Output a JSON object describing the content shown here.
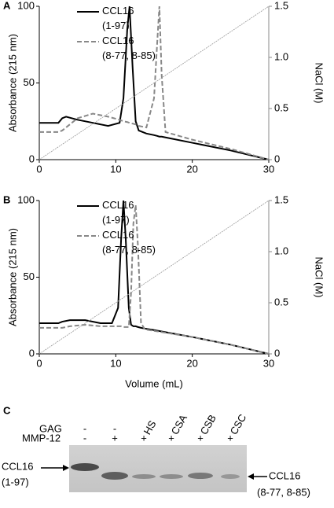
{
  "chart_data": [
    {
      "type": "line",
      "panel": "A",
      "ylabel": "Absorbance (215 nm)",
      "y2label": "NaCl (M)",
      "xlim": [
        0,
        30
      ],
      "xticks": [
        0,
        10,
        20,
        30
      ],
      "ylim": [
        0,
        100
      ],
      "yticks": [
        0,
        50,
        100
      ],
      "y2lim": [
        0,
        1.5
      ],
      "y2ticks": [
        0,
        0.5,
        {
          "value": 1,
          "label": "1.0"
        },
        1.5
      ],
      "series": [
        {
          "name": "CCL16 (1-97)",
          "color": "#000000",
          "style": "solid",
          "x": [
            0,
            2.5,
            3,
            3.5,
            5,
            7,
            9,
            10.5,
            11,
            11.5,
            11.8,
            12.2,
            12.6,
            13,
            14,
            15,
            15.4,
            15.7,
            16,
            16.5,
            20,
            25,
            30
          ],
          "values": [
            24,
            24,
            27,
            28,
            26,
            24,
            22,
            24,
            40,
            85,
            100,
            60,
            25,
            19,
            17,
            16,
            15.5,
            15,
            15,
            14.5,
            11,
            6,
            0
          ]
        },
        {
          "name": "CCL16 (8-77, 8-85)",
          "color": "#888888",
          "style": "dashed",
          "x": [
            0,
            2.5,
            3,
            3.5,
            5,
            7,
            9,
            10.5,
            11,
            11.5,
            11.8,
            12.2,
            12.6,
            13,
            14,
            15,
            15.4,
            15.7,
            16,
            16.5,
            20,
            25,
            30
          ],
          "values": [
            18,
            18,
            19,
            21,
            27,
            30,
            28,
            26,
            25,
            24.5,
            24,
            23.5,
            23,
            22,
            21,
            40,
            75,
            100,
            55,
            18,
            13,
            7,
            0
          ]
        },
        {
          "color": "#999999",
          "style": "dotted",
          "axis": "y2",
          "x": [
            0,
            30
          ],
          "values": [
            0,
            1.5
          ]
        }
      ]
    },
    {
      "type": "line",
      "panel": "B",
      "xlabel": "Volume (mL)",
      "ylabel": "Absorbance (215 nm)",
      "y2label": "NaCl (M)",
      "xlim": [
        0,
        30
      ],
      "xticks": [
        0,
        10,
        20,
        30
      ],
      "ylim": [
        0,
        100
      ],
      "yticks": [
        0,
        50,
        100
      ],
      "y2lim": [
        0,
        1.5
      ],
      "y2ticks": [
        0,
        0.5,
        {
          "value": 1,
          "label": "1.0"
        },
        1.5
      ],
      "series": [
        {
          "name": "CCL16 (1-97)",
          "color": "#000000",
          "style": "solid",
          "x": [
            0,
            2.5,
            3,
            4,
            6,
            8,
            9.5,
            10.3,
            10.7,
            11,
            11.3,
            11.7,
            12,
            12.3,
            12.6,
            12.9,
            13.3,
            13.8,
            15,
            20,
            25,
            30
          ],
          "values": [
            20,
            20,
            21,
            22,
            22,
            20,
            20,
            30,
            75,
            100,
            75,
            30,
            19,
            18,
            18,
            17.5,
            17,
            16.5,
            15.5,
            11,
            6,
            0
          ]
        },
        {
          "name": "CCL16 (8-77, 8-85)",
          "color": "#888888",
          "style": "dashed",
          "x": [
            0,
            2.5,
            3,
            4,
            6,
            8,
            9.5,
            10.3,
            10.7,
            11,
            11.3,
            11.7,
            12,
            12.3,
            12.6,
            12.9,
            13.3,
            13.8,
            15,
            20,
            25,
            30
          ],
          "values": [
            17,
            17,
            17,
            18,
            19,
            18,
            18,
            18,
            18,
            17.5,
            17.5,
            17.5,
            40,
            85,
            97,
            70,
            20,
            16,
            15,
            11,
            6,
            0
          ]
        },
        {
          "color": "#999999",
          "style": "dotted",
          "axis": "y2",
          "x": [
            0,
            30
          ],
          "values": [
            0,
            1.5
          ]
        }
      ]
    }
  ],
  "gel": {
    "panel": "C",
    "row_labels": [
      "GAG",
      "MMP-12"
    ],
    "gag": [
      "-",
      "-",
      "HS",
      "CSA",
      "CSB",
      "CSC"
    ],
    "mmp12": [
      "-",
      "+",
      "+",
      "+",
      "+",
      "+"
    ],
    "left_label": [
      "CCL16",
      "(1-97)"
    ],
    "right_label": [
      "CCL16",
      "(8-77, 8-85)"
    ]
  }
}
